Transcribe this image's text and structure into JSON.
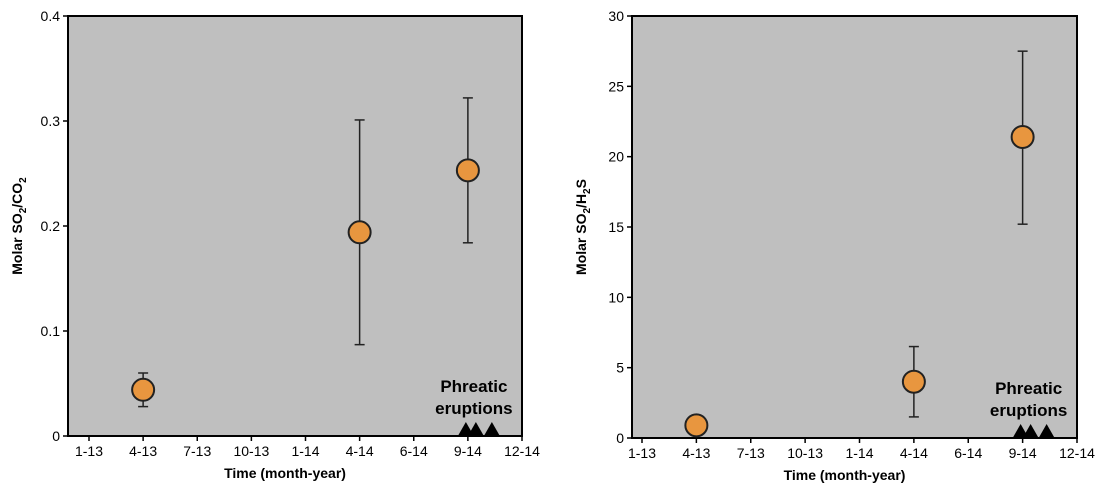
{
  "chart_data": [
    {
      "type": "scatter",
      "title": "",
      "xlabel": "Time (month-year)",
      "ylabel_parts": [
        "Molar SO",
        "2",
        "/CO",
        "2"
      ],
      "x_tick_labels": [
        "1-13",
        "4-13",
        "7-13",
        "10-13",
        "1-14",
        "4-14",
        "6-14",
        "9-14",
        "12-14"
      ],
      "y_ticks": [
        0,
        0.1,
        0.2,
        0.3,
        0.4
      ],
      "y_tick_labels": [
        "0",
        "0.1",
        "0.2",
        "0.3",
        "0.4"
      ],
      "ylim": [
        0,
        0.4
      ],
      "grid": false,
      "points": [
        {
          "x": "4-13",
          "y": 0.044,
          "err_low": 0.028,
          "err_high": 0.06
        },
        {
          "x": "4-14",
          "y": 0.194,
          "err_low": 0.087,
          "err_high": 0.301
        },
        {
          "x": "9-14",
          "y": 0.253,
          "err_low": 0.184,
          "err_high": 0.322
        }
      ],
      "annotation": {
        "lines": [
          "Phreatic",
          "eruptions"
        ]
      },
      "eruption_markers": 3,
      "colors": {
        "plot_bg": "#bfbfbf",
        "marker_fill": "#e8963f",
        "marker_edge": "#222222"
      }
    },
    {
      "type": "scatter",
      "title": "",
      "xlabel": "Time (month-year)",
      "ylabel_parts": [
        "Molar SO",
        "2",
        "/H",
        "2",
        "S"
      ],
      "x_tick_labels": [
        "1-13",
        "4-13",
        "7-13",
        "10-13",
        "1-14",
        "4-14",
        "6-14",
        "9-14",
        "12-14"
      ],
      "y_ticks": [
        0,
        5,
        10,
        15,
        20,
        25,
        30
      ],
      "y_tick_labels": [
        "0",
        "5",
        "10",
        "15",
        "20",
        "25",
        "30"
      ],
      "ylim": [
        0,
        30
      ],
      "grid": false,
      "points": [
        {
          "x": "4-13",
          "y": 0.9
        },
        {
          "x": "4-14",
          "y": 4.0,
          "err_low": 1.5,
          "err_high": 6.5
        },
        {
          "x": "9-14",
          "y": 21.4,
          "err_low": 15.2,
          "err_high": 27.5
        }
      ],
      "annotation": {
        "lines": [
          "Phreatic",
          "eruptions"
        ]
      },
      "eruption_markers": 3,
      "colors": {
        "plot_bg": "#bfbfbf",
        "marker_fill": "#e8963f",
        "marker_edge": "#222222"
      }
    }
  ]
}
